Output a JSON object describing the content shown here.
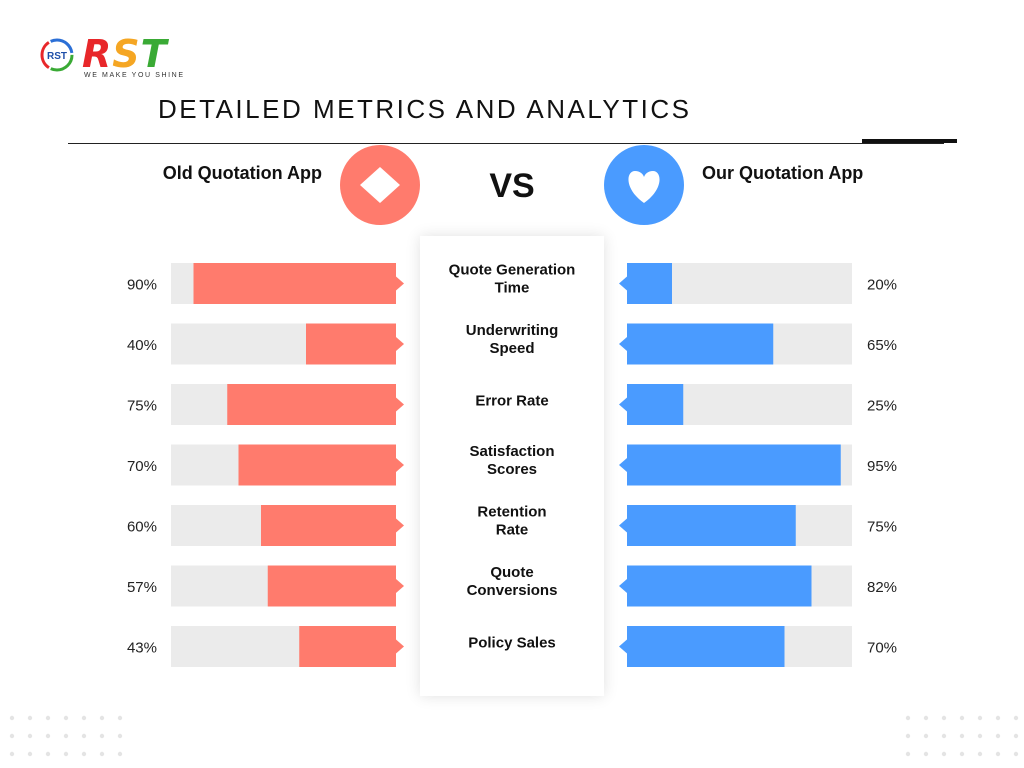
{
  "brand": {
    "name": "RST",
    "tagline": "WE MAKE YOU SHINE",
    "mark_text": "RST"
  },
  "page_title": "DETAILED METRICS AND ANALYTICS",
  "comparison": {
    "left_title": "Old Quotation App",
    "right_title": "Our Quotation App",
    "vs": "VS",
    "left_icon": "diamond-icon",
    "right_icon": "heart-icon"
  },
  "colors": {
    "left": "#ff7b6d",
    "right": "#4a9bff",
    "track": "#ebebeb",
    "brand_r": "#e8272a",
    "brand_s": "#f5a623",
    "brand_t": "#3aaa35"
  },
  "chart_data": {
    "type": "bar",
    "categories": [
      "Quote Generation Time",
      "Underwriting Speed",
      "Error Rate",
      "Satisfaction Scores",
      "Retention Rate",
      "Quote Conversions",
      "Policy Sales"
    ],
    "series": [
      {
        "name": "Old Quotation App",
        "values": [
          90,
          40,
          75,
          70,
          60,
          57,
          43
        ]
      },
      {
        "name": "Our Quotation App",
        "values": [
          20,
          65,
          25,
          95,
          75,
          82,
          70
        ]
      }
    ],
    "value_labels_left": [
      "90%",
      "40%",
      "75%",
      "70%",
      "60%",
      "57%",
      "43%"
    ],
    "value_labels_right": [
      "20%",
      "65%",
      "25%",
      "95%",
      "75%",
      "82%",
      "70%"
    ],
    "ylim": [
      0,
      100
    ]
  }
}
